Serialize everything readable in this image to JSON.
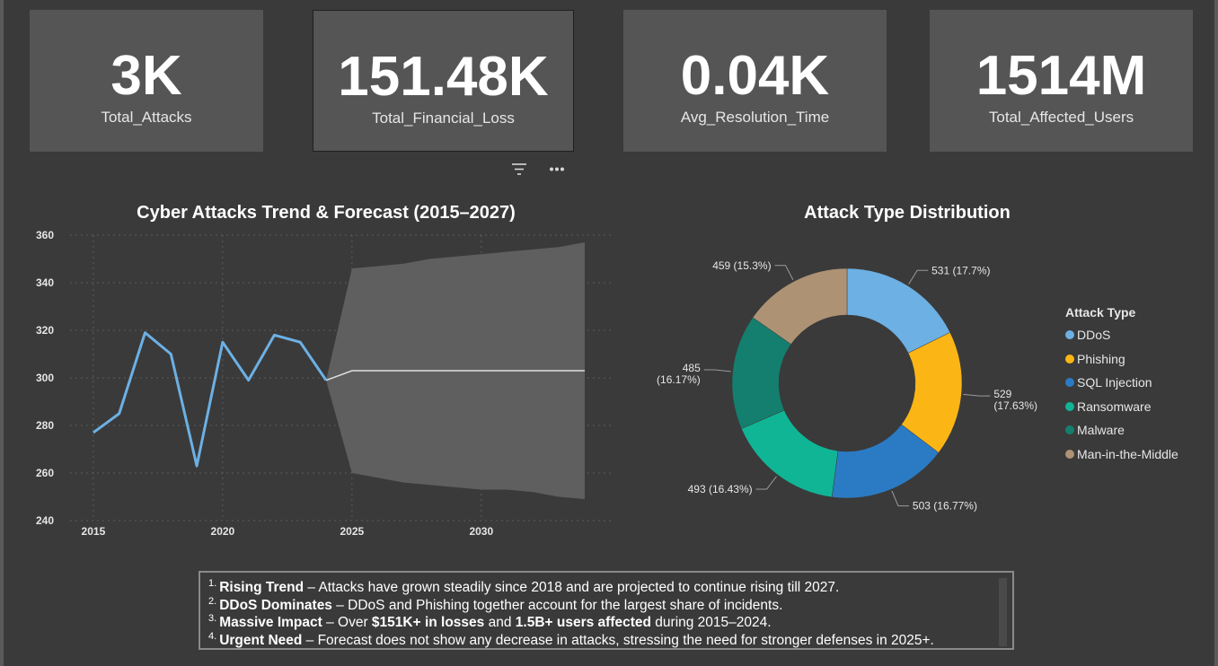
{
  "kpis": [
    {
      "value": "3K",
      "label": "Total_Attacks"
    },
    {
      "value": "151.48K",
      "label": "Total_Financial_Loss"
    },
    {
      "value": "0.04K",
      "label": "Avg_Resolution_Time"
    },
    {
      "value": "1514M",
      "label": "Total_Affected_Users"
    }
  ],
  "visual_header": {
    "filter_icon": "filter-icon",
    "more_icon": "more-options-icon"
  },
  "colors": {
    "background": "#3a3a3a",
    "card": "#555555",
    "line": "#6cb0e4",
    "forecast_band": "#5f5f5f",
    "forecast_line": "#e0e0e0"
  },
  "chart_data": [
    {
      "type": "line",
      "title": "Cyber Attacks Trend & Forecast (2015–2027)",
      "x": [
        2015,
        2016,
        2017,
        2018,
        2019,
        2020,
        2021,
        2022,
        2023,
        2024
      ],
      "series": [
        {
          "values": [
            277,
            285,
            319,
            310,
            263,
            315,
            299,
            318,
            315,
            299
          ]
        }
      ],
      "forecast": {
        "x": [
          2024,
          2025,
          2026,
          2027,
          2028,
          2029,
          2030,
          2031,
          2032,
          2033,
          2034
        ],
        "values": [
          299,
          303,
          303,
          303,
          303,
          303,
          303,
          303,
          303,
          303,
          303
        ],
        "upper": [
          299,
          346,
          347,
          348,
          350,
          351,
          352,
          353,
          354,
          355,
          357
        ],
        "lower": [
          299,
          260,
          258,
          256,
          255,
          254,
          253,
          253,
          252,
          250,
          249
        ]
      },
      "xlim": [
        2014.1,
        2034.8
      ],
      "ylim": [
        240,
        360
      ],
      "xticks": [
        2015,
        2020,
        2025,
        2030
      ],
      "yticks": [
        240,
        260,
        280,
        300,
        320,
        340,
        360
      ],
      "grid": true
    },
    {
      "type": "pie",
      "title": "Attack Type Distribution",
      "donut": true,
      "legend_title": "Attack Type",
      "legend_position": "right",
      "slices": [
        {
          "name": "DDoS",
          "value": 531,
          "label": "531 (17.7%)",
          "color": "#6cb0e4"
        },
        {
          "name": "Phishing",
          "value": 529,
          "label": "529 (17.63%)",
          "color": "#fbb616"
        },
        {
          "name": "SQL Injection",
          "value": 503,
          "label": "503 (16.77%)",
          "color": "#2b7bc4"
        },
        {
          "name": "Ransomware",
          "value": 493,
          "label": "493 (16.43%)",
          "color": "#10b596"
        },
        {
          "name": "Malware",
          "value": 485,
          "label": "485 (16.17%)",
          "color": "#147f6e"
        },
        {
          "name": "Man-in-the-Middle",
          "value": 459,
          "label": "459 (15.3%)",
          "color": "#ad9274"
        }
      ]
    }
  ],
  "notes": [
    {
      "num": "1.",
      "parts": [
        {
          "b": true,
          "t": "Rising Trend"
        },
        {
          "b": false,
          "t": " – Attacks have grown steadily since 2018 and are projected to continue rising till 2027."
        }
      ]
    },
    {
      "num": "2.",
      "parts": [
        {
          "b": true,
          "t": "DDoS Dominates"
        },
        {
          "b": false,
          "t": " – DDoS and Phishing together account for the largest share of incidents."
        }
      ]
    },
    {
      "num": "3.",
      "parts": [
        {
          "b": true,
          "t": "Massive Impact"
        },
        {
          "b": false,
          "t": " – Over "
        },
        {
          "b": true,
          "t": "$151K+ in losses"
        },
        {
          "b": false,
          "t": " and "
        },
        {
          "b": true,
          "t": "1.5B+ users affected"
        },
        {
          "b": false,
          "t": " during 2015–2024."
        }
      ]
    },
    {
      "num": "4.",
      "parts": [
        {
          "b": true,
          "t": "Urgent Need"
        },
        {
          "b": false,
          "t": " – Forecast does not show any decrease in attacks, stressing the need for stronger defenses in 2025+."
        }
      ]
    }
  ]
}
